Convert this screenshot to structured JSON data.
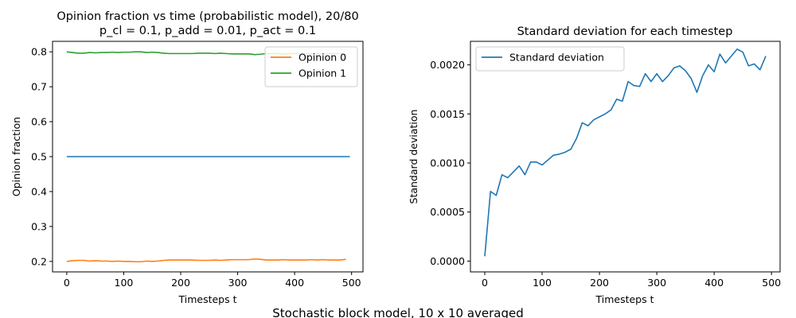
{
  "figure": {
    "suptitle": "Stochastic block model, 10 x 10 averaged"
  },
  "chart_data": [
    {
      "type": "line",
      "title_line1": "Opinion fraction vs time (probabilistic model), 20/80",
      "title_line2": "p_cl = 0.1, p_add = 0.01, p_act = 0.1",
      "xlabel": "Timesteps t",
      "ylabel": "Opinion fraction",
      "xlim": [
        -25,
        520
      ],
      "ylim": [
        0.17,
        0.83
      ],
      "xticks": [
        0,
        100,
        200,
        300,
        400,
        500
      ],
      "xtick_labels": [
        "0",
        "100",
        "200",
        "300",
        "400",
        "500"
      ],
      "yticks": [
        0.2,
        0.3,
        0.4,
        0.5,
        0.6,
        0.7,
        0.8
      ],
      "ytick_labels": [
        "0.2",
        "0.3",
        "0.4",
        "0.5",
        "0.6",
        "0.7",
        "0.8"
      ],
      "legend_position": "top-right",
      "series": [
        {
          "name": "",
          "in_legend": false,
          "color": "#1f77b4",
          "x": [
            0,
            497
          ],
          "y": [
            0.5,
            0.5
          ]
        },
        {
          "name": "Opinion 0",
          "in_legend": true,
          "color": "#ff7f0e",
          "x": [
            0,
            10,
            20,
            30,
            40,
            50,
            60,
            70,
            80,
            90,
            100,
            110,
            120,
            130,
            140,
            150,
            160,
            170,
            180,
            190,
            200,
            210,
            220,
            230,
            240,
            250,
            260,
            270,
            280,
            290,
            300,
            310,
            320,
            330,
            340,
            350,
            360,
            370,
            380,
            390,
            400,
            410,
            420,
            430,
            440,
            450,
            460,
            470,
            480,
            490
          ],
          "y": [
            0.2,
            0.202,
            0.203,
            0.203,
            0.201,
            0.202,
            0.201,
            0.201,
            0.2,
            0.201,
            0.2,
            0.2,
            0.199,
            0.199,
            0.201,
            0.2,
            0.201,
            0.203,
            0.204,
            0.204,
            0.204,
            0.204,
            0.204,
            0.203,
            0.203,
            0.203,
            0.204,
            0.203,
            0.204,
            0.205,
            0.205,
            0.205,
            0.205,
            0.207,
            0.206,
            0.204,
            0.204,
            0.204,
            0.205,
            0.204,
            0.204,
            0.204,
            0.204,
            0.205,
            0.204,
            0.205,
            0.204,
            0.204,
            0.204,
            0.206
          ]
        },
        {
          "name": "Opinion 1",
          "in_legend": true,
          "color": "#2ca02c",
          "x": [
            0,
            10,
            20,
            30,
            40,
            50,
            60,
            70,
            80,
            90,
            100,
            110,
            120,
            130,
            140,
            150,
            160,
            170,
            180,
            190,
            200,
            210,
            220,
            230,
            240,
            250,
            260,
            270,
            280,
            290,
            300,
            310,
            320,
            330,
            340,
            350,
            360,
            370,
            380,
            390,
            400,
            410,
            420,
            430,
            440,
            450,
            460,
            470,
            480,
            490
          ],
          "y": [
            0.8,
            0.798,
            0.796,
            0.796,
            0.798,
            0.797,
            0.798,
            0.798,
            0.799,
            0.798,
            0.799,
            0.799,
            0.8,
            0.8,
            0.798,
            0.799,
            0.798,
            0.796,
            0.795,
            0.795,
            0.795,
            0.795,
            0.795,
            0.796,
            0.796,
            0.796,
            0.795,
            0.796,
            0.795,
            0.794,
            0.794,
            0.794,
            0.794,
            0.792,
            0.793,
            0.795,
            0.795,
            0.795,
            0.794,
            0.795,
            0.795,
            0.795,
            0.795,
            0.794,
            0.795,
            0.794,
            0.795,
            0.795,
            0.795,
            0.793
          ]
        }
      ]
    },
    {
      "type": "line",
      "title": "Standard deviation for each timestep",
      "xlabel": "Timesteps t",
      "ylabel": "Standard deviation",
      "xlim": [
        -25,
        515
      ],
      "ylim": [
        -0.00011,
        0.00224
      ],
      "xticks": [
        0,
        100,
        200,
        300,
        400,
        500
      ],
      "xtick_labels": [
        "0",
        "100",
        "200",
        "300",
        "400",
        "500"
      ],
      "yticks": [
        0.0,
        0.0005,
        0.001,
        0.0015,
        0.002
      ],
      "ytick_labels": [
        "0.0000",
        "0.0005",
        "0.0010",
        "0.0015",
        "0.0020"
      ],
      "legend_position": "top-left",
      "series": [
        {
          "name": "Standard deviation",
          "in_legend": true,
          "color": "#1f77b4",
          "x": [
            0,
            10,
            20,
            30,
            40,
            50,
            60,
            70,
            80,
            90,
            100,
            110,
            120,
            130,
            140,
            150,
            160,
            170,
            180,
            190,
            200,
            210,
            220,
            230,
            240,
            250,
            260,
            270,
            280,
            290,
            300,
            310,
            320,
            330,
            340,
            350,
            360,
            370,
            380,
            390,
            400,
            410,
            420,
            430,
            440,
            450,
            460,
            470,
            480,
            490
          ],
          "y": [
            5e-05,
            0.00071,
            0.00067,
            0.00088,
            0.00085,
            0.00091,
            0.00097,
            0.00088,
            0.00101,
            0.00101,
            0.00098,
            0.00103,
            0.00108,
            0.00109,
            0.00111,
            0.00114,
            0.00125,
            0.00141,
            0.00138,
            0.00144,
            0.00147,
            0.0015,
            0.00154,
            0.00165,
            0.00163,
            0.00183,
            0.00179,
            0.00178,
            0.00191,
            0.00183,
            0.00191,
            0.00183,
            0.00189,
            0.00197,
            0.00199,
            0.00194,
            0.00186,
            0.00172,
            0.00189,
            0.002,
            0.00193,
            0.00211,
            0.00202,
            0.00209,
            0.00216,
            0.00213,
            0.00199,
            0.00201,
            0.00195,
            0.00209
          ]
        }
      ]
    }
  ]
}
